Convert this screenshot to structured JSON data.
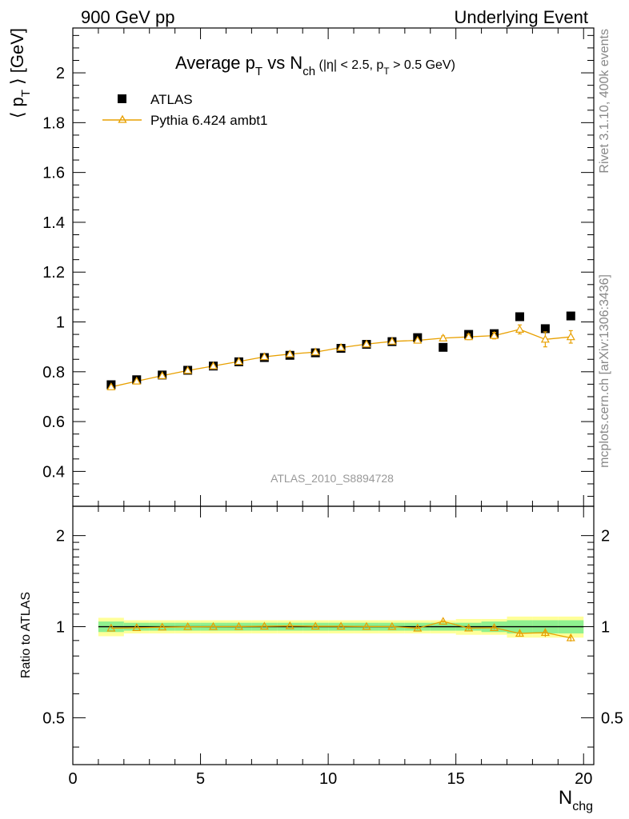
{
  "header": {
    "left": "900 GeV pp",
    "right": "Underlying Event",
    "side_top": "Rivet 3.1.10,  400k events",
    "side_bottom": "mcplots.cern.ch [arXiv:1306:3436]",
    "watermark": "ATLAS_2010_S8894728"
  },
  "title": {
    "main_a": "Average p",
    "main_a_sub": "T",
    "main_b": " vs N",
    "main_b_sub": "ch",
    "cut_a": " (|η| < 2.5, p",
    "cut_sub": "T",
    "cut_b": " > 0.5 GeV)"
  },
  "axes": {
    "ylabel_top": "⟨ p",
    "ylabel_top_sub": "T",
    "ylabel_top_b": " ⟩ [GeV]",
    "ylabel_bottom": "Ratio to ATLAS",
    "xlabel": "N",
    "xlabel_sub": "chg"
  },
  "legend": [
    {
      "label": "ATLAS",
      "marker": "square",
      "color": "#000000"
    },
    {
      "label": "Pythia 6.424 ambt1",
      "marker": "triangle",
      "color": "#f0a30a"
    }
  ],
  "colors": {
    "mc": "#e8a000",
    "band_outer": "#ffff99",
    "band_inner": "#8ff08f",
    "data": "#000000"
  },
  "chart_data": {
    "type": "scatter",
    "x": [
      1.5,
      2.5,
      3.5,
      4.5,
      5.5,
      6.5,
      7.5,
      8.5,
      9.5,
      10.5,
      11.5,
      12.5,
      13.5,
      14.5,
      15.5,
      16.5,
      17.5,
      18.5,
      19.5
    ],
    "xlim": [
      0,
      20.4
    ],
    "ylim": [
      0.26,
      2.18
    ],
    "xticks": [
      0,
      5,
      10,
      15,
      20
    ],
    "yticks": [
      0.4,
      0.6,
      0.8,
      1,
      1.2,
      1.4,
      1.6,
      1.8,
      2
    ],
    "series": [
      {
        "name": "ATLAS",
        "values": [
          0.748,
          0.768,
          0.787,
          0.806,
          0.823,
          0.84,
          0.857,
          0.866,
          0.876,
          0.894,
          0.91,
          0.921,
          0.937,
          0.898,
          0.95,
          0.953,
          1.021,
          0.973,
          1.024
        ],
        "band_outer": [
          0.07,
          0.05,
          0.05,
          0.05,
          0.05,
          0.05,
          0.05,
          0.05,
          0.05,
          0.05,
          0.05,
          0.05,
          0.05,
          0.05,
          0.06,
          0.06,
          0.08,
          0.08,
          0.08
        ],
        "band_inner": [
          0.04,
          0.03,
          0.03,
          0.03,
          0.03,
          0.03,
          0.03,
          0.03,
          0.03,
          0.03,
          0.03,
          0.03,
          0.03,
          0.03,
          0.03,
          0.04,
          0.05,
          0.05,
          0.05
        ]
      },
      {
        "name": "Pythia 6.424 ambt1",
        "values": [
          0.739,
          0.762,
          0.784,
          0.805,
          0.823,
          0.841,
          0.86,
          0.871,
          0.879,
          0.897,
          0.911,
          0.922,
          0.926,
          0.935,
          0.94,
          0.945,
          0.97,
          0.93,
          0.94
        ],
        "errors": [
          0.004,
          0.004,
          0.004,
          0.004,
          0.004,
          0.004,
          0.004,
          0.005,
          0.005,
          0.005,
          0.006,
          0.007,
          0.008,
          0.009,
          0.011,
          0.013,
          0.018,
          0.03,
          0.025
        ]
      }
    ],
    "ratio": {
      "ylim": [
        0.35,
        2.5
      ],
      "log": true,
      "yticks": [
        0.5,
        1,
        2
      ],
      "values": [
        0.988,
        0.992,
        0.996,
        0.999,
        1.0,
        1.001,
        1.003,
        1.006,
        1.003,
        1.003,
        1.001,
        1.001,
        0.988,
        1.041,
        0.989,
        0.992,
        0.95,
        0.956,
        0.918
      ],
      "errors": [
        0.005,
        0.005,
        0.005,
        0.005,
        0.005,
        0.005,
        0.005,
        0.006,
        0.006,
        0.006,
        0.007,
        0.008,
        0.009,
        0.01,
        0.012,
        0.014,
        0.018,
        0.031,
        0.025
      ]
    }
  }
}
